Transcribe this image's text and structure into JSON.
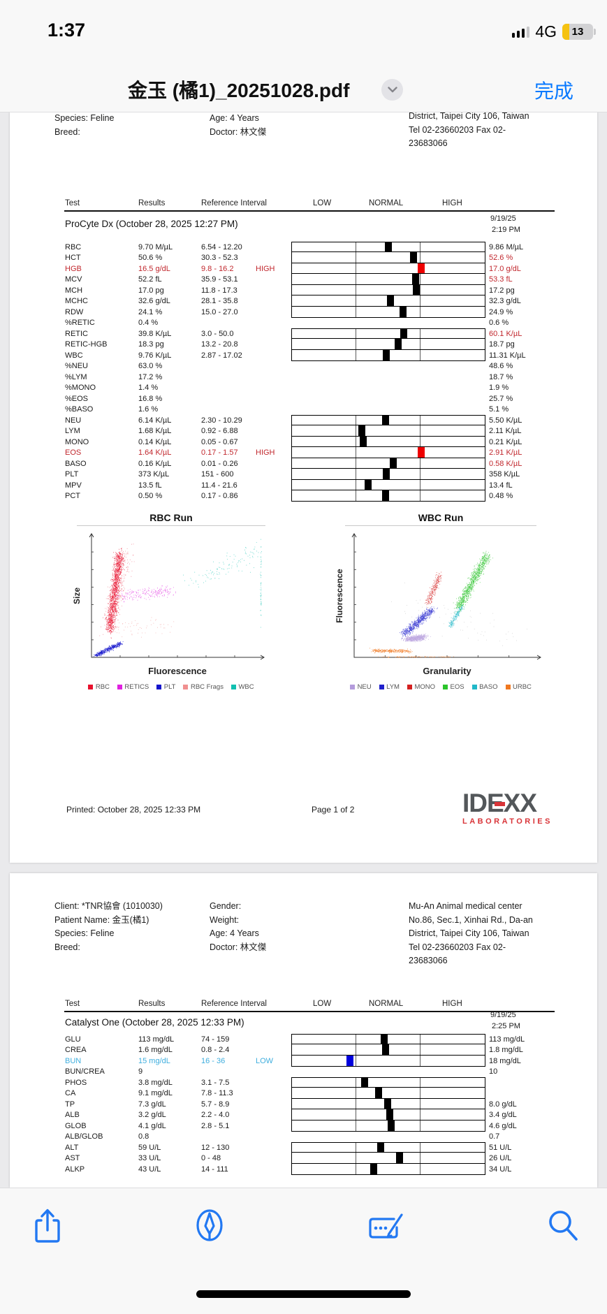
{
  "status_bar": {
    "time": "1:37",
    "network": "4G",
    "battery_level": "13"
  },
  "nav": {
    "title": "金玉 (橘1)_20251028.pdf",
    "done_label": "完成"
  },
  "table_headers": {
    "test": "Test",
    "results": "Results",
    "ref": "Reference Interval",
    "low": "LOW",
    "normal": "NORMAL",
    "high": "HIGH"
  },
  "page1": {
    "info": {
      "col1": [
        "Species: Feline",
        "Breed:"
      ],
      "col2": [
        "Age: 4 Years",
        "Doctor: 林文傑"
      ],
      "col3": [
        "District, Taipei City 106, Taiwan",
        "Tel 02-23660203  Fax 02-",
        "23683066"
      ]
    },
    "panel_title": "ProCyte Dx (October 28, 2025 12:27 PM)",
    "prev_date": "9/19/25",
    "prev_time": "2:19 PM",
    "rows": [
      {
        "name": "RBC",
        "result": "9.70 M/µL",
        "ref": "6.54 - 12.20",
        "flag": "",
        "state": "normal",
        "bar": 0.5,
        "prev": "9.86 M/µL",
        "prev_state": "normal"
      },
      {
        "name": "HCT",
        "result": "50.6 %",
        "ref": "30.3 - 52.3",
        "flag": "",
        "state": "normal",
        "bar": 0.63,
        "prev": "52.6 %",
        "prev_state": "high"
      },
      {
        "name": "HGB",
        "result": "16.5 g/dL",
        "ref": "9.8 - 16.2",
        "flag": "HIGH",
        "state": "high",
        "bar": 0.67,
        "prev": "17.0 g/dL",
        "prev_state": "high"
      },
      {
        "name": "MCV",
        "result": "52.2 fL",
        "ref": "35.9 - 53.1",
        "flag": "",
        "state": "normal",
        "bar": 0.64,
        "prev": "53.3 fL",
        "prev_state": "high"
      },
      {
        "name": "MCH",
        "result": "17.0 pg",
        "ref": "11.8 - 17.3",
        "flag": "",
        "state": "normal",
        "bar": 0.645,
        "prev": "17.2 pg",
        "prev_state": "normal"
      },
      {
        "name": "MCHC",
        "result": "32.6 g/dL",
        "ref": "28.1 - 35.8",
        "flag": "",
        "state": "normal",
        "bar": 0.51,
        "prev": "32.3 g/dL",
        "prev_state": "normal"
      },
      {
        "name": "RDW",
        "result": "24.1 %",
        "ref": "15.0 - 27.0",
        "flag": "",
        "state": "normal",
        "bar": 0.575,
        "prev": "24.9 %",
        "prev_state": "normal"
      },
      {
        "name": "%RETIC",
        "result": "0.4 %",
        "ref": "",
        "flag": "",
        "state": "normal",
        "bar": null,
        "prev": "0.6 %",
        "prev_state": "normal"
      },
      {
        "name": "RETIC",
        "result": "39.8 K/µL",
        "ref": "3.0 - 50.0",
        "flag": "",
        "state": "normal",
        "bar": 0.58,
        "prev": "60.1 K/µL",
        "prev_state": "high"
      },
      {
        "name": "RETIC-HGB",
        "result": "18.3 pg",
        "ref": "13.2 - 20.8",
        "flag": "",
        "state": "normal",
        "bar": 0.55,
        "prev": "18.7 pg",
        "prev_state": "normal"
      },
      {
        "name": "WBC",
        "result": "9.76 K/µL",
        "ref": "2.87 - 17.02",
        "flag": "",
        "state": "normal",
        "bar": 0.49,
        "prev": "11.31 K/µL",
        "prev_state": "normal"
      },
      {
        "name": "%NEU",
        "result": "63.0 %",
        "ref": "",
        "flag": "",
        "state": "normal",
        "bar": null,
        "prev": "48.6 %",
        "prev_state": "normal"
      },
      {
        "name": "%LYM",
        "result": "17.2 %",
        "ref": "",
        "flag": "",
        "state": "normal",
        "bar": null,
        "prev": "18.7 %",
        "prev_state": "normal"
      },
      {
        "name": "%MONO",
        "result": "1.4 %",
        "ref": "",
        "flag": "",
        "state": "normal",
        "bar": null,
        "prev": "1.9 %",
        "prev_state": "normal"
      },
      {
        "name": "%EOS",
        "result": "16.8 %",
        "ref": "",
        "flag": "",
        "state": "normal",
        "bar": null,
        "prev": "25.7 %",
        "prev_state": "normal"
      },
      {
        "name": "%BASO",
        "result": "1.6 %",
        "ref": "",
        "flag": "",
        "state": "normal",
        "bar": null,
        "prev": "5.1 %",
        "prev_state": "normal"
      },
      {
        "name": "NEU",
        "result": "6.14 K/µL",
        "ref": "2.30 - 10.29",
        "flag": "",
        "state": "normal",
        "bar": 0.486,
        "prev": "5.50 K/µL",
        "prev_state": "normal"
      },
      {
        "name": "LYM",
        "result": "1.68 K/µL",
        "ref": "0.92 - 6.88",
        "flag": "",
        "state": "normal",
        "bar": 0.363,
        "prev": "2.11 K/µL",
        "prev_state": "normal"
      },
      {
        "name": "MONO",
        "result": "0.14 K/µL",
        "ref": "0.05 - 0.67",
        "flag": "",
        "state": "normal",
        "bar": 0.37,
        "prev": "0.21 K/µL",
        "prev_state": "normal"
      },
      {
        "name": "EOS",
        "result": "1.64 K/µL",
        "ref": "0.17 - 1.57",
        "flag": "HIGH",
        "state": "high",
        "bar": 0.67,
        "prev": "2.91 K/µL",
        "prev_state": "high"
      },
      {
        "name": "BASO",
        "result": "0.16 K/µL",
        "ref": "0.01 - 0.26",
        "flag": "",
        "state": "normal",
        "bar": 0.525,
        "prev": "0.58 K/µL",
        "prev_state": "high"
      },
      {
        "name": "PLT",
        "result": "373 K/µL",
        "ref": "151 - 600",
        "flag": "",
        "state": "normal",
        "bar": 0.49,
        "prev": "358 K/µL",
        "prev_state": "normal"
      },
      {
        "name": "MPV",
        "result": "13.5 fL",
        "ref": "11.4 - 21.6",
        "flag": "",
        "state": "normal",
        "bar": 0.395,
        "prev": "13.4 fL",
        "prev_state": "normal"
      },
      {
        "name": "PCT",
        "result": "0.50 %",
        "ref": "0.17 - 0.86",
        "flag": "",
        "state": "normal",
        "bar": 0.486,
        "prev": "0.48 %",
        "prev_state": "normal"
      }
    ],
    "footer": {
      "printed": "Printed: October 28, 2025 12:33 PM",
      "page": "Page 1 of 2"
    }
  },
  "brand": {
    "name": "IDEXX",
    "sub": "LABORATORIES"
  },
  "page2": {
    "info": {
      "col1": [
        "Client: *TNR協會 (1010030)",
        "Patient Name: 金玉(橘1)",
        "Species: Feline",
        "Breed:"
      ],
      "col2": [
        "Gender:",
        "Weight:",
        "Age: 4 Years",
        "Doctor: 林文傑"
      ],
      "col3": [
        "Mu-An Animal medical center",
        "No.86, Sec.1, Xinhai Rd., Da-an",
        "District, Taipei City 106, Taiwan",
        "Tel 02-23660203  Fax 02-",
        "23683066"
      ]
    },
    "panel_title": "Catalyst One (October 28, 2025 12:33 PM)",
    "prev_date": "9/19/25",
    "prev_time": "2:25 PM",
    "rows": [
      {
        "name": "GLU",
        "result": "113 mg/dL",
        "ref": "74 - 159",
        "flag": "",
        "state": "normal",
        "bar": 0.48,
        "prev": "113 mg/dL",
        "prev_state": "normal"
      },
      {
        "name": "CREA",
        "result": "1.6 mg/dL",
        "ref": "0.8 - 2.4",
        "flag": "",
        "state": "normal",
        "bar": 0.486,
        "prev": "1.8 mg/dL",
        "prev_state": "normal"
      },
      {
        "name": "BUN",
        "result": "15 mg/dL",
        "ref": "16 - 36",
        "flag": "LOW",
        "state": "low",
        "bar": 0.3,
        "prev": "18 mg/dL",
        "prev_state": "normal"
      },
      {
        "name": "BUN/CREA",
        "result": "9",
        "ref": "",
        "flag": "",
        "state": "normal",
        "bar": null,
        "prev": "10",
        "prev_state": "normal"
      },
      {
        "name": "PHOS",
        "result": "3.8 mg/dL",
        "ref": "3.1 - 7.5",
        "flag": "",
        "state": "normal",
        "bar": 0.378,
        "prev": "",
        "prev_state": "normal"
      },
      {
        "name": "CA",
        "result": "9.1 mg/dL",
        "ref": "7.8 - 11.3",
        "flag": "",
        "state": "normal",
        "bar": 0.45,
        "prev": "",
        "prev_state": "normal"
      },
      {
        "name": "TP",
        "result": "7.3 g/dL",
        "ref": "5.7 - 8.9",
        "flag": "",
        "state": "normal",
        "bar": 0.496,
        "prev": "8.0 g/dL",
        "prev_state": "normal"
      },
      {
        "name": "ALB",
        "result": "3.2 g/dL",
        "ref": "2.2 - 4.0",
        "flag": "",
        "state": "normal",
        "bar": 0.507,
        "prev": "3.4 g/dL",
        "prev_state": "normal"
      },
      {
        "name": "GLOB",
        "result": "4.1 g/dL",
        "ref": "2.8 - 5.1",
        "flag": "",
        "state": "normal",
        "bar": 0.514,
        "prev": "4.6 g/dL",
        "prev_state": "normal"
      },
      {
        "name": "ALB/GLOB",
        "result": "0.8",
        "ref": "",
        "flag": "",
        "state": "normal",
        "bar": null,
        "prev": "0.7",
        "prev_state": "normal"
      },
      {
        "name": "ALT",
        "result": "59 U/L",
        "ref": "12 - 130",
        "flag": "",
        "state": "normal",
        "bar": 0.46,
        "prev": "51 U/L",
        "prev_state": "normal"
      },
      {
        "name": "AST",
        "result": "33 U/L",
        "ref": "0 - 48",
        "flag": "",
        "state": "normal",
        "bar": 0.557,
        "prev": "26 U/L",
        "prev_state": "normal"
      },
      {
        "name": "ALKP",
        "result": "43 U/L",
        "ref": "14 - 111",
        "flag": "",
        "state": "normal",
        "bar": 0.425,
        "prev": "34 U/L",
        "prev_state": "normal"
      }
    ]
  },
  "chart_data": [
    {
      "type": "scatter",
      "title": "RBC Run",
      "xlabel": "Fluorescence",
      "ylabel": "Size",
      "legend": [
        {
          "label": "RBC",
          "color": "#E8112D"
        },
        {
          "label": "RETICS",
          "color": "#E020E0"
        },
        {
          "label": "PLT",
          "color": "#1414CC"
        },
        {
          "label": "RBC Frags",
          "color": "#F09090"
        },
        {
          "label": "WBC",
          "color": "#10C0B0"
        }
      ],
      "clusters": [
        {
          "name": "RBC",
          "color": "#E8112D",
          "n": 1400,
          "cx": 0.105,
          "cy": 0.78,
          "tx": 0.06,
          "ty": -0.62,
          "sx": 0.032,
          "sy": 0.055,
          "op": 0.9
        },
        {
          "name": "RBC",
          "color": "#E8112D",
          "n": 300,
          "cx": 0.1,
          "cy": 0.75,
          "tx": 0.1,
          "ty": -0.6,
          "sx": 0.06,
          "sy": 0.09,
          "op": 0.55
        },
        {
          "name": "RETICS",
          "color": "#E020E0",
          "n": 220,
          "cx": 0.17,
          "cy": 0.5,
          "tx": 0.3,
          "ty": -0.04,
          "sx": 0.055,
          "sy": 0.05,
          "op": 0.8
        },
        {
          "name": "PLT",
          "color": "#1414CC",
          "n": 450,
          "cx": 0.025,
          "cy": 0.985,
          "tx": 0.145,
          "ty": -0.1,
          "sx": 0.022,
          "sy": 0.018,
          "op": 0.95
        },
        {
          "name": "RBC Frags",
          "color": "#F09090",
          "n": 55,
          "cx": 0.15,
          "cy": 0.78,
          "tx": 0.3,
          "ty": -0.05,
          "sx": 0.1,
          "sy": 0.08,
          "op": 0.8
        },
        {
          "name": "WBC",
          "color": "#10C0B0",
          "n": 110,
          "cx": 0.6,
          "cy": 0.38,
          "tx": 0.38,
          "ty": -0.25,
          "sx": 0.1,
          "sy": 0.08,
          "op": 0.8
        },
        {
          "name": "WBC",
          "color": "#10C0B0",
          "n": 50,
          "cx": 0.985,
          "cy": 0.15,
          "tx": 0.0,
          "ty": 0.5,
          "sx": 0.004,
          "sy": 0.15,
          "op": 0.8
        }
      ]
    },
    {
      "type": "scatter",
      "title": "WBC Run",
      "xlabel": "Granularity",
      "ylabel": "Fluorescence",
      "legend": [
        {
          "label": "NEU",
          "color": "#B49BDC"
        },
        {
          "label": "LYM",
          "color": "#2020CC"
        },
        {
          "label": "MONO",
          "color": "#D42020"
        },
        {
          "label": "EOS",
          "color": "#2BC42B"
        },
        {
          "label": "BASO",
          "color": "#20B8C8"
        },
        {
          "label": "URBC",
          "color": "#F07820"
        }
      ],
      "clusters": [
        {
          "name": "URBC",
          "color": "#F07820",
          "n": 320,
          "cx": 0.1,
          "cy": 0.945,
          "tx": 0.2,
          "ty": 0.005,
          "sx": 0.03,
          "sy": 0.016,
          "op": 0.9
        },
        {
          "name": "URBC",
          "color": "#F07820",
          "n": 90,
          "cx": 0.15,
          "cy": 0.997,
          "tx": 0.35,
          "ty": 0.0,
          "sx": 0.05,
          "sy": 0.004,
          "op": 0.9
        },
        {
          "name": "NEU",
          "color": "#B49BDC",
          "n": 700,
          "cx": 0.285,
          "cy": 0.855,
          "tx": 0.09,
          "ty": -0.02,
          "sx": 0.038,
          "sy": 0.026,
          "op": 0.85
        },
        {
          "name": "LYM",
          "color": "#2020CC",
          "n": 700,
          "cx": 0.265,
          "cy": 0.815,
          "tx": 0.155,
          "ty": -0.205,
          "sx": 0.03,
          "sy": 0.03,
          "op": 0.85
        },
        {
          "name": "MONO",
          "color": "#D42020",
          "n": 260,
          "cx": 0.395,
          "cy": 0.565,
          "tx": 0.065,
          "ty": -0.23,
          "sx": 0.022,
          "sy": 0.035,
          "op": 0.85
        },
        {
          "name": "EOS",
          "color": "#2BC42B",
          "n": 1000,
          "cx": 0.56,
          "cy": 0.6,
          "tx": 0.155,
          "ty": -0.43,
          "sx": 0.027,
          "sy": 0.045,
          "op": 0.85
        },
        {
          "name": "BASO",
          "color": "#20B8C8",
          "n": 200,
          "cx": 0.515,
          "cy": 0.745,
          "tx": 0.065,
          "ty": -0.165,
          "sx": 0.016,
          "sy": 0.025,
          "op": 0.85
        },
        {
          "name": "noise",
          "color": "#AAAAAA",
          "n": 60,
          "cx": 0.3,
          "cy": 0.55,
          "tx": 0.55,
          "ty": 0.3,
          "sx": 0.18,
          "sy": 0.18,
          "op": 0.6
        }
      ]
    }
  ],
  "toolbar": {
    "share": "share",
    "markup": "markup",
    "signature": "fill-and-sign",
    "search": "search"
  },
  "colors": {
    "accent_blue": "#0A7AFF",
    "alert_red": "#C1272D",
    "marker_red": "#EE0000",
    "low_blue": "#3FAEDE",
    "marker_blue": "#0000DD",
    "battery_yellow": "#F5C211",
    "logo_red": "#D93438"
  }
}
